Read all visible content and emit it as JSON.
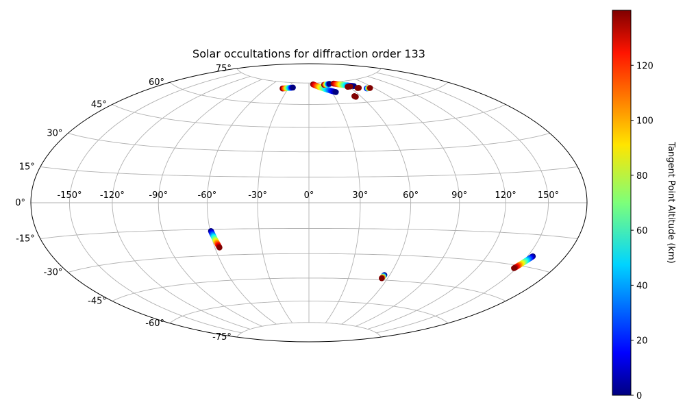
{
  "chart_data": {
    "type": "scatter",
    "projection": "hammer",
    "title": "Solar occultations for diffraction order 133",
    "lon_ticks": [
      "-150°",
      "-120°",
      "-90°",
      "-60°",
      "-30°",
      "0°",
      "30°",
      "60°",
      "90°",
      "120°",
      "150°"
    ],
    "lon_tick_values": [
      -150,
      -120,
      -90,
      -60,
      -30,
      0,
      30,
      60,
      90,
      120,
      150
    ],
    "lat_ticks": [
      "75°",
      "60°",
      "45°",
      "30°",
      "15°",
      "0°",
      "-15°",
      "-30°",
      "-45°",
      "-60°",
      "-75°"
    ],
    "lat_tick_values": [
      75,
      60,
      45,
      30,
      15,
      0,
      -15,
      -30,
      -45,
      -60,
      -75
    ],
    "grid": true,
    "colorbar": {
      "label": "Tangent Point Altitude (km)",
      "colormap": "jet",
      "range": [
        0,
        140
      ],
      "ticks": [
        "0",
        "20",
        "40",
        "60",
        "80",
        "100",
        "120"
      ],
      "tick_values": [
        0,
        20,
        40,
        60,
        80,
        100,
        120
      ]
    },
    "tracks": [
      {
        "lon_start": -38,
        "lat_start": 70.5,
        "alt_start": 140,
        "lon_end": -24,
        "lat_end": 71.5,
        "alt_end": 0
      },
      {
        "lon_start": -59.5,
        "lat_start": -16,
        "alt_start": 0,
        "lon_end": -57,
        "lat_end": -25.5,
        "alt_end": 140
      },
      {
        "lon_start": 7,
        "lat_start": 74,
        "alt_start": 140,
        "lon_end": 35,
        "lat_end": 68,
        "alt_end": 0
      },
      {
        "lon_start": 25,
        "lat_start": 73.5,
        "alt_start": 140,
        "lon_end": 35,
        "lat_end": 74,
        "alt_end": 0
      },
      {
        "lon_start": 42,
        "lat_start": 74,
        "alt_start": 140,
        "lon_end": 68,
        "lat_end": 71,
        "alt_end": 0
      },
      {
        "lon_start": 58,
        "lat_start": 71,
        "alt_start": 140,
        "lon_end": 62,
        "lat_end": 71,
        "alt_end": 140
      },
      {
        "lon_start": 69,
        "lat_start": 69.5,
        "alt_start": 140,
        "lon_end": 71,
        "lat_end": 69.5,
        "alt_end": 140
      },
      {
        "lon_start": 80,
        "lat_start": 68.5,
        "alt_start": 20,
        "lon_end": 85,
        "lat_end": 68.5,
        "alt_end": 140
      },
      {
        "lon_start": 53,
        "lat_start": 64.5,
        "alt_start": 140,
        "lon_end": 54,
        "lat_end": 64,
        "alt_end": 140
      },
      {
        "lon_start": 56,
        "lat_start": -42,
        "alt_start": 0,
        "lon_end": 55.5,
        "lat_end": -44,
        "alt_end": 140
      },
      {
        "lon_start": 154,
        "lat_start": -25,
        "alt_start": 0,
        "lon_end": 148,
        "lat_end": -31.5,
        "alt_end": 140
      }
    ]
  }
}
